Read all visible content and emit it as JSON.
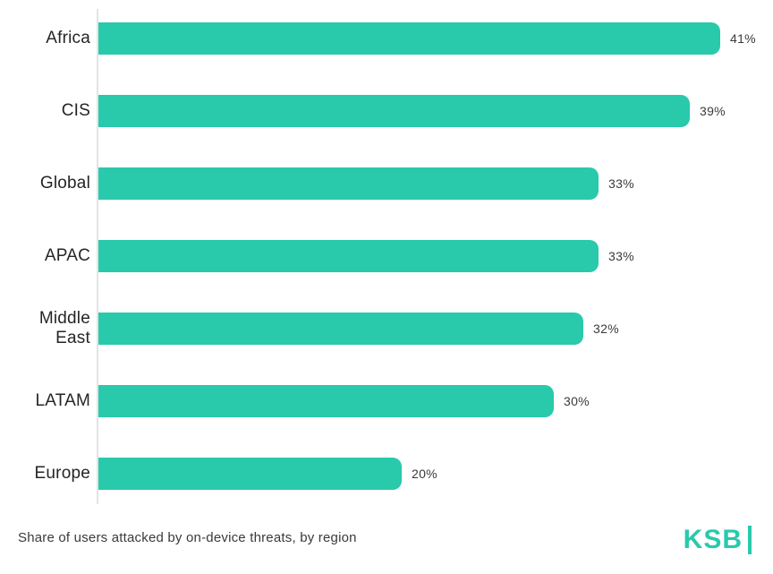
{
  "chart_data": {
    "type": "bar",
    "orientation": "horizontal",
    "title": "Share of users attacked by on-device threats, by region",
    "categories": [
      "Africa",
      "CIS",
      "Global",
      "APAC",
      "Middle East",
      "LATAM",
      "Europe"
    ],
    "values": [
      41,
      39,
      33,
      33,
      32,
      30,
      20
    ],
    "value_labels": [
      "41%",
      "39%",
      "33%",
      "33%",
      "32%",
      "30%",
      "20%"
    ],
    "xlabel": "",
    "ylabel": "",
    "xlim": [
      0,
      41
    ],
    "grid": false,
    "legend": null,
    "bar_color": "#29c9ac"
  },
  "caption": "Share of users attacked by on-device threats, by region",
  "logo": {
    "text": "KSB"
  },
  "colors": {
    "accent": "#29c9ac",
    "axis_line": "#e2e4e6",
    "category_text": "#252525",
    "value_text": "#3a3a3a",
    "background": "#ffffff"
  }
}
